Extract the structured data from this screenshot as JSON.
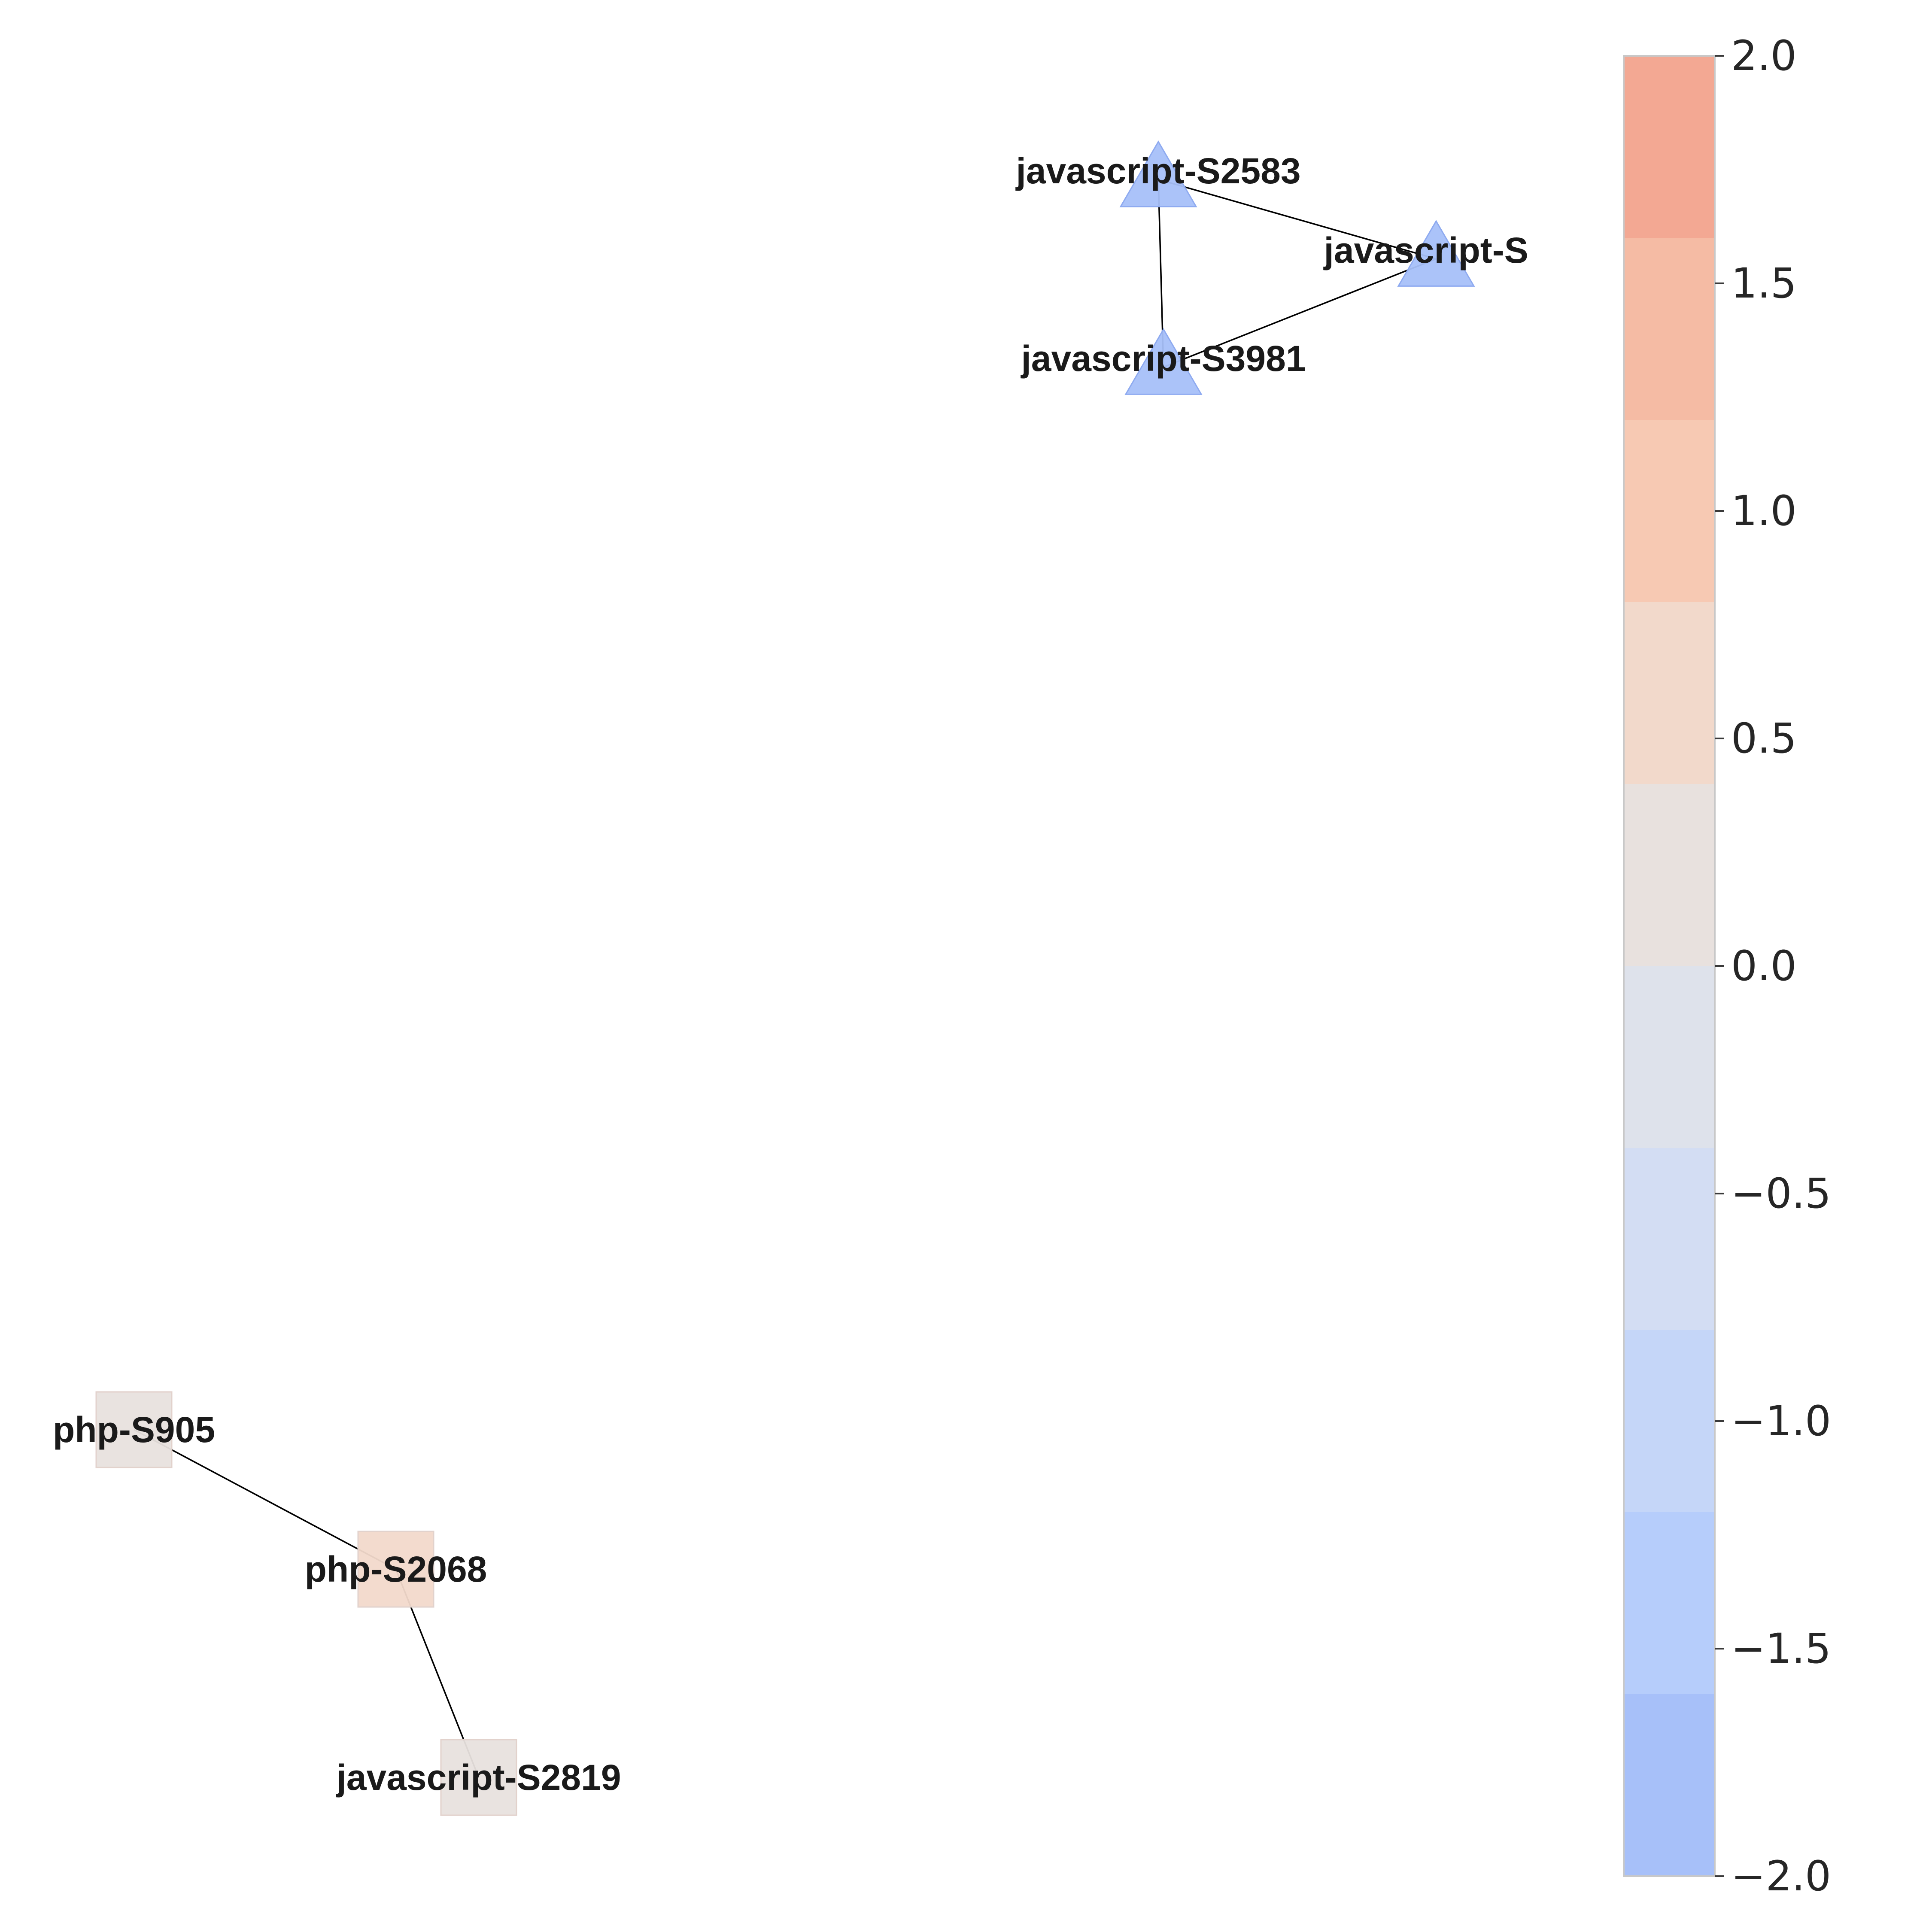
{
  "nodes": [
    {
      "id": "javascript-S2583",
      "label": "javascript-S2583",
      "shape": "triangle",
      "value": -2.0
    },
    {
      "id": "javascript-S3",
      "label": "javascript-S3",
      "shape": "triangle",
      "value": -2.0
    },
    {
      "id": "javascript-S3981",
      "label": "javascript-S3981",
      "shape": "triangle",
      "value": -2.0
    },
    {
      "id": "php-S905",
      "label": "php-S905",
      "shape": "square",
      "value": 0.2
    },
    {
      "id": "php-S2068",
      "label": "php-S2068",
      "shape": "square",
      "value": 0.6
    },
    {
      "id": "javascript-S2819",
      "label": "javascript-S2819",
      "shape": "square",
      "value": 0.2
    }
  ],
  "edges": [
    {
      "from": "javascript-S2583",
      "to": "javascript-S3"
    },
    {
      "from": "javascript-S2583",
      "to": "javascript-S3981"
    },
    {
      "from": "javascript-S3",
      "to": "javascript-S3981"
    },
    {
      "from": "php-S905",
      "to": "php-S2068"
    },
    {
      "from": "php-S2068",
      "to": "javascript-S2819"
    }
  ],
  "colorbar": {
    "min": -2.0,
    "max": 2.0,
    "ticks": [
      "2.0",
      "1.5",
      "1.0",
      "0.5",
      "0.0",
      "−0.5",
      "−1.0",
      "−1.5",
      "−2.0"
    ],
    "bands": [
      "#f3a893",
      "#f5bba4",
      "#f7c9b3",
      "#f2d9cb",
      "#e8e1de",
      "#dee2eb",
      "#d3ddf3",
      "#c5d6f8",
      "#b6cdfb",
      "#a7c0f9"
    ]
  }
}
